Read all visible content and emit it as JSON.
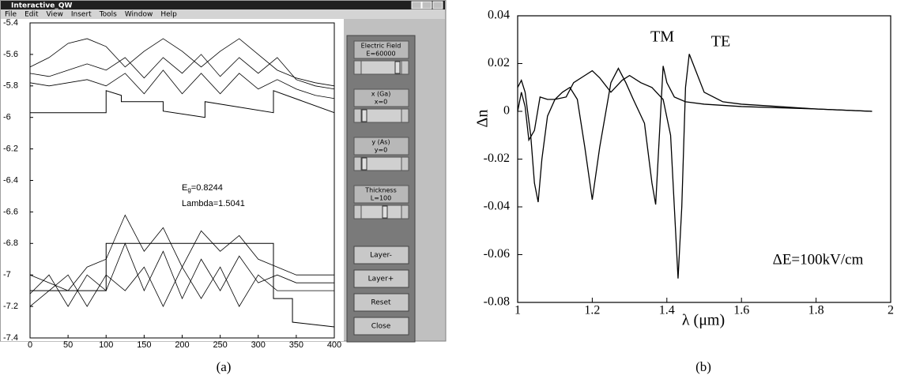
{
  "window": {
    "title": "Interactive_QW",
    "menu": [
      "File",
      "Edit",
      "View",
      "Insert",
      "Tools",
      "Window",
      "Help"
    ]
  },
  "left_plot": {
    "type": "line",
    "xlim": [
      0,
      400
    ],
    "xticks": [
      0,
      50,
      100,
      150,
      200,
      250,
      300,
      350,
      400
    ],
    "ylim": [
      -7.4,
      -5.4
    ],
    "yticks": [
      -7.4,
      -7.2,
      -7,
      -6.8,
      -6.6,
      -6.4,
      -6.2,
      -6,
      -5.8,
      -5.6,
      -5.4
    ],
    "color": "#000000",
    "annotation_eg": {
      "symbol": "E",
      "sub": "g",
      "rest": "=0.8244"
    },
    "annotation_lambda": "Lambda=1.5041",
    "profiles": [
      {
        "x": [
          0,
          100,
          100,
          120,
          120,
          175,
          175,
          230,
          230,
          320,
          320,
          400
        ],
        "values": [
          -5.97,
          -5.97,
          -5.83,
          -5.86,
          -5.9,
          -5.9,
          -5.96,
          -6.0,
          -5.9,
          -5.97,
          -5.83,
          -5.97
        ]
      },
      {
        "x": [
          0,
          100,
          100,
          320,
          320,
          345,
          345,
          400
        ],
        "values": [
          -7.1,
          -7.1,
          -6.8,
          -6.8,
          -7.15,
          -7.15,
          -7.3,
          -7.33
        ]
      }
    ],
    "wave_x": [
      0,
      25,
      50,
      75,
      100,
      125,
      150,
      175,
      200,
      225,
      250,
      275,
      300,
      325,
      350,
      375,
      400
    ],
    "waves": [
      {
        "values": [
          -5.68,
          -5.62,
          -5.53,
          -5.5,
          -5.55,
          -5.68,
          -5.58,
          -5.5,
          -5.58,
          -5.68,
          -5.58,
          -5.5,
          -5.6,
          -5.7,
          -5.75,
          -5.78,
          -5.8
        ]
      },
      {
        "values": [
          -5.72,
          -5.74,
          -5.7,
          -5.66,
          -5.7,
          -5.62,
          -5.75,
          -5.62,
          -5.72,
          -5.6,
          -5.74,
          -5.62,
          -5.72,
          -5.62,
          -5.76,
          -5.8,
          -5.82
        ]
      },
      {
        "values": [
          -5.78,
          -5.8,
          -5.78,
          -5.76,
          -5.8,
          -5.72,
          -5.85,
          -5.7,
          -5.85,
          -5.72,
          -5.85,
          -5.72,
          -5.82,
          -5.76,
          -5.82,
          -5.86,
          -5.88
        ]
      },
      {
        "values": [
          -7.0,
          -7.05,
          -7.1,
          -6.95,
          -6.9,
          -6.62,
          -6.85,
          -6.7,
          -6.95,
          -6.72,
          -6.85,
          -6.75,
          -6.9,
          -6.95,
          -7.0,
          -7.0,
          -7.0
        ]
      },
      {
        "values": [
          -7.12,
          -7.0,
          -7.2,
          -7.0,
          -7.1,
          -6.8,
          -7.1,
          -6.85,
          -7.15,
          -6.9,
          -7.1,
          -6.88,
          -7.05,
          -7.0,
          -7.05,
          -7.05,
          -7.05
        ]
      },
      {
        "values": [
          -7.2,
          -7.1,
          -7.0,
          -7.2,
          -7.0,
          -7.1,
          -6.95,
          -7.2,
          -6.95,
          -7.15,
          -6.95,
          -7.2,
          -7.0,
          -7.1,
          -7.1,
          -7.1,
          -7.1
        ]
      }
    ],
    "caption": "(a)"
  },
  "controls": {
    "sliders": [
      {
        "label": "Electric Field",
        "value": "E=60000"
      },
      {
        "label": "x (Ga)",
        "value": "x=0"
      },
      {
        "label": "y (As)",
        "value": "y=0"
      },
      {
        "label": "Thickness",
        "value": "L=100"
      }
    ],
    "buttons": [
      "Layer-",
      "Layer+",
      "Reset",
      "Close"
    ]
  },
  "chart_data": {
    "type": "line",
    "y_label": "Δn",
    "x_label": "λ (μm)",
    "annotation": "ΔE=100kV/cm",
    "xlim": [
      1,
      2
    ],
    "xticks": [
      1,
      1.2,
      1.4,
      1.6,
      1.8,
      2
    ],
    "ylim": [
      -0.08,
      0.04
    ],
    "yticks": [
      0.04,
      0.02,
      0,
      -0.02,
      -0.04,
      -0.06,
      -0.08
    ],
    "series": [
      {
        "name": "TM",
        "color": "#000000",
        "x": [
          1.0,
          1.01,
          1.02,
          1.035,
          1.045,
          1.055,
          1.065,
          1.08,
          1.1,
          1.12,
          1.14,
          1.16,
          1.18,
          1.2,
          1.22,
          1.25,
          1.27,
          1.29,
          1.31,
          1.34,
          1.36,
          1.37,
          1.38,
          1.39,
          1.4,
          1.42,
          1.45,
          1.5,
          1.6,
          1.8,
          1.95
        ],
        "values": [
          0.01,
          0.013,
          0.008,
          -0.01,
          -0.03,
          -0.038,
          -0.02,
          -0.002,
          0.005,
          0.008,
          0.01,
          0.005,
          -0.015,
          -0.037,
          -0.015,
          0.012,
          0.018,
          0.012,
          0.005,
          -0.005,
          -0.03,
          -0.039,
          -0.01,
          0.019,
          0.012,
          0.006,
          0.004,
          0.003,
          0.002,
          0.001,
          0
        ]
      },
      {
        "name": "TE",
        "color": "#000000",
        "x": [
          1.0,
          1.01,
          1.02,
          1.03,
          1.045,
          1.06,
          1.08,
          1.1,
          1.13,
          1.15,
          1.18,
          1.2,
          1.22,
          1.25,
          1.28,
          1.3,
          1.33,
          1.36,
          1.39,
          1.41,
          1.42,
          1.43,
          1.44,
          1.45,
          1.46,
          1.47,
          1.5,
          1.55,
          1.6,
          1.7,
          1.8,
          1.95
        ],
        "values": [
          0.0,
          0.008,
          0.002,
          -0.012,
          -0.008,
          0.006,
          0.005,
          0.005,
          0.006,
          0.012,
          0.015,
          0.017,
          0.014,
          0.008,
          0.013,
          0.015,
          0.012,
          0.01,
          0.005,
          -0.01,
          -0.04,
          -0.07,
          -0.04,
          0.01,
          0.024,
          0.02,
          0.008,
          0.004,
          0.003,
          0.002,
          0.001,
          0
        ]
      }
    ],
    "caption": "(b)"
  }
}
